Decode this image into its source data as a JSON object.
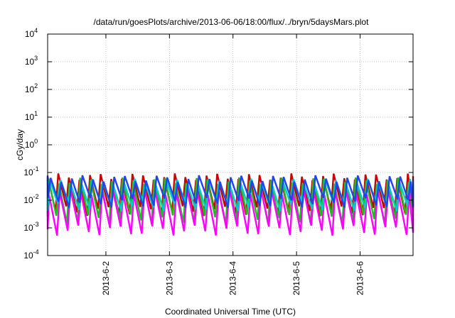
{
  "chart_data": {
    "type": "line",
    "title": "/data/run/goesPlots/archive/2013-06-06/18:00/flux/../bryn/5daysMars.plot",
    "xlabel": "Coordinated Universal Time (UTC)",
    "ylabel": "cGy/day",
    "yscale": "log",
    "ylim": [
      0.0001,
      10000
    ],
    "xlim": [
      "2013-06-01 02:00",
      "2013-06-06 20:00"
    ],
    "grid": true,
    "legend": "none",
    "x_ticks": [
      "2013-6-2",
      "2013-6-3",
      "2013-6-4",
      "2013-6-5",
      "2013-6-6"
    ],
    "y_ticks": [
      {
        "value": 0.0001,
        "base": "10",
        "exp": "-4"
      },
      {
        "value": 0.001,
        "base": "10",
        "exp": "-3"
      },
      {
        "value": 0.01,
        "base": "10",
        "exp": "-2"
      },
      {
        "value": 0.1,
        "base": "10",
        "exp": "-1"
      },
      {
        "value": 1,
        "base": "10",
        "exp": "0"
      },
      {
        "value": 10,
        "base": "10",
        "exp": "1"
      },
      {
        "value": 100,
        "base": "10",
        "exp": "2"
      },
      {
        "value": 1000,
        "base": "10",
        "exp": "3"
      },
      {
        "value": 10000,
        "base": "10",
        "exp": "4"
      }
    ],
    "cycle_hours": 4,
    "series": [
      {
        "color": "#cc0000",
        "peak": 0.07,
        "trough": 0.004
      },
      {
        "color": "#22bb22",
        "peak": 0.05,
        "trough": 0.002
      },
      {
        "color": "#ff00ff",
        "peak": 0.02,
        "trough": 0.0008
      },
      {
        "color": "#00cccc",
        "peak": 0.045,
        "trough": 0.006
      },
      {
        "color": "#2244ee",
        "peak": 0.06,
        "trough": 0.008
      }
    ]
  }
}
